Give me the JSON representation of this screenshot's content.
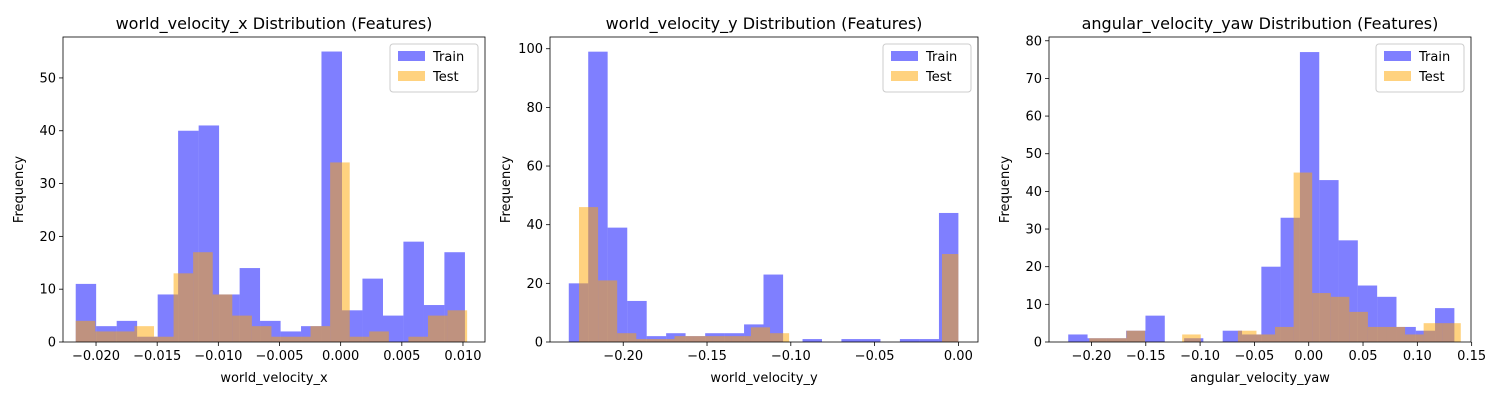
{
  "colors": {
    "train": "#0000ff",
    "test": "#ffa500",
    "train_alpha": 0.5,
    "test_alpha": 0.5
  },
  "chart_data": [
    {
      "type": "bar",
      "title": "world_velocity_x Distribution (Features)",
      "xlabel": "world_velocity_x",
      "ylabel": "Frequency",
      "xlim": [
        -0.0227,
        0.0118
      ],
      "ylim": [
        0,
        57.75
      ],
      "xticks": [
        -0.02,
        -0.015,
        -0.01,
        -0.005,
        0.0,
        0.005,
        0.01
      ],
      "xtick_labels": [
        "−0.020",
        "−0.015",
        "−0.010",
        "−0.005",
        "0.000",
        "0.005",
        "0.010"
      ],
      "yticks": [
        0,
        10,
        20,
        30,
        40,
        50
      ],
      "ytick_labels": [
        "0",
        "10",
        "20",
        "30",
        "40",
        "50"
      ],
      "legend": {
        "position": "upper right",
        "entries": [
          "Train",
          "Test"
        ]
      },
      "series": [
        {
          "name": "Train",
          "edges": [
            -0.02166,
            -0.01999,
            -0.01831,
            -0.01664,
            -0.01496,
            -0.01329,
            -0.01161,
            -0.00994,
            -0.00826,
            -0.00659,
            -0.00491,
            -0.00324,
            -0.00157,
            0.00011,
            0.00178,
            0.00346,
            0.00513,
            0.00681,
            0.00848,
            0.01016
          ],
          "values": [
            11,
            3,
            4,
            1,
            9,
            40,
            41,
            9,
            14,
            4,
            2,
            3,
            55,
            6,
            12,
            5,
            19,
            7,
            17
          ]
        },
        {
          "name": "Test",
          "edges": [
            -0.02166,
            -0.02006,
            -0.01846,
            -0.01686,
            -0.01526,
            -0.01366,
            -0.01206,
            -0.01046,
            -0.00886,
            -0.00726,
            -0.00566,
            -0.00406,
            -0.00246,
            -0.00086,
            0.00074,
            0.00234,
            0.00394,
            0.00554,
            0.00714,
            0.00874,
            0.01034
          ],
          "values": [
            4,
            2,
            2,
            3,
            1,
            13,
            17,
            9,
            5,
            3,
            1,
            1,
            3,
            34,
            1,
            2,
            0,
            1,
            5,
            6
          ]
        }
      ]
    },
    {
      "type": "bar",
      "title": "world_velocity_y Distribution (Features)",
      "xlabel": "world_velocity_y",
      "ylabel": "Frequency",
      "xlim": [
        -0.2437,
        0.0117
      ],
      "ylim": [
        0,
        104
      ],
      "xticks": [
        -0.2,
        -0.15,
        -0.1,
        -0.05,
        0.0
      ],
      "xtick_labels": [
        "−0.20",
        "−0.15",
        "−0.10",
        "−0.05",
        "0.00"
      ],
      "yticks": [
        0,
        20,
        40,
        60,
        80,
        100
      ],
      "ytick_labels": [
        "0",
        "20",
        "40",
        "60",
        "80",
        "100"
      ],
      "legend": {
        "position": "upper right",
        "entries": [
          "Train",
          "Test"
        ]
      },
      "series": [
        {
          "name": "Train",
          "edges": [
            -0.2325,
            -0.2209,
            -0.2093,
            -0.1976,
            -0.186,
            -0.1744,
            -0.1628,
            -0.1511,
            -0.1395,
            -0.1279,
            -0.1163,
            -0.1046,
            -0.093,
            -0.0814,
            -0.0698,
            -0.0581,
            -0.0465,
            -0.0349,
            -0.0233,
            -0.0116,
            0.0
          ],
          "values": [
            20,
            99,
            39,
            14,
            2,
            3,
            2,
            3,
            3,
            6,
            23,
            0,
            1,
            0,
            1,
            1,
            0,
            1,
            1,
            44
          ]
        },
        {
          "name": "Test",
          "edges": [
            -0.2264,
            -0.215,
            -0.2036,
            -0.1922,
            -0.1808,
            -0.1694,
            -0.158,
            -0.1466,
            -0.1352,
            -0.1238,
            -0.1124,
            -0.101,
            -0.0896,
            -0.0782,
            -0.0668,
            -0.0554,
            -0.044,
            -0.0326,
            -0.0212,
            -0.0098,
            0.0
          ],
          "values": [
            46,
            21,
            3,
            1,
            1,
            2,
            2,
            2,
            2,
            5,
            3,
            0,
            0,
            0,
            0,
            0,
            0,
            0,
            0,
            30
          ]
        }
      ]
    },
    {
      "type": "bar",
      "title": "angular_velocity_yaw Distribution (Features)",
      "xlabel": "angular_velocity_yaw",
      "ylabel": "Frequency",
      "xlim": [
        -0.2391,
        0.1494
      ],
      "ylim": [
        0,
        81
      ],
      "xticks": [
        -0.2,
        -0.15,
        -0.1,
        -0.05,
        0.0,
        0.05,
        0.1,
        0.15
      ],
      "xtick_labels": [
        "−0.20",
        "−0.15",
        "−0.10",
        "−0.05",
        "0.00",
        "0.05",
        "0.10",
        "0.15"
      ],
      "yticks": [
        0,
        10,
        20,
        30,
        40,
        50,
        60,
        70,
        80
      ],
      "ytick_labels": [
        "0",
        "10",
        "20",
        "30",
        "40",
        "50",
        "60",
        "70",
        "80"
      ],
      "legend": {
        "position": "upper right",
        "entries": [
          "Train",
          "Test"
        ]
      },
      "series": [
        {
          "name": "Train",
          "edges": [
            -0.2214,
            -0.2036,
            -0.1858,
            -0.1681,
            -0.1503,
            -0.1325,
            -0.1147,
            -0.097,
            -0.0792,
            -0.0614,
            -0.0436,
            -0.0259,
            -0.0081,
            0.0097,
            0.0275,
            0.0452,
            0.063,
            0.0808,
            0.0986,
            0.1163,
            0.1341
          ],
          "values": [
            2,
            1,
            1,
            3,
            7,
            0,
            1,
            0,
            3,
            2,
            20,
            33,
            77,
            43,
            27,
            15,
            12,
            4,
            3,
            9
          ]
        },
        {
          "name": "Test",
          "edges": [
            -0.202,
            -0.1849,
            -0.1678,
            -0.1507,
            -0.1336,
            -0.1165,
            -0.0994,
            -0.0823,
            -0.0652,
            -0.0481,
            -0.031,
            -0.0139,
            0.0032,
            0.0203,
            0.0374,
            0.0545,
            0.0716,
            0.0887,
            0.1058,
            0.1229,
            0.14
          ],
          "values": [
            1,
            1,
            3,
            0,
            0,
            2,
            0,
            0,
            3,
            2,
            4,
            45,
            13,
            12,
            8,
            4,
            4,
            2,
            5,
            5
          ]
        }
      ]
    }
  ]
}
